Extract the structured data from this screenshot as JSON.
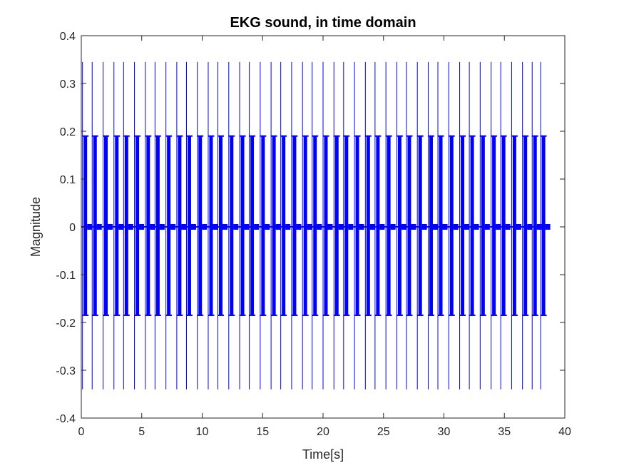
{
  "chart_data": {
    "type": "line",
    "title": "EKG sound, in time domain",
    "xlabel": "Time[s]",
    "ylabel": "Magnitude",
    "xlim": [
      0,
      40
    ],
    "ylim": [
      -0.4,
      0.4
    ],
    "x_ticks": [
      0,
      5,
      10,
      15,
      20,
      25,
      30,
      35,
      40
    ],
    "x_tick_labels": [
      "0",
      "5",
      "10",
      "15",
      "20",
      "25",
      "30",
      "35",
      "40"
    ],
    "y_ticks": [
      -0.4,
      -0.3,
      -0.2,
      -0.1,
      0,
      0.1,
      0.2,
      0.3,
      0.4
    ],
    "y_tick_labels": [
      "-0.4",
      "-0.3",
      "-0.2",
      "-0.1",
      "0",
      "0.1",
      "0.2",
      "0.3",
      "0.4"
    ],
    "grid": false,
    "series": [
      {
        "color": "#0000ff",
        "beat_times": [
          0.1,
          0.9,
          1.8,
          2.7,
          3.5,
          4.4,
          5.3,
          6.1,
          7.0,
          7.9,
          8.7,
          9.6,
          10.5,
          11.3,
          12.2,
          13.1,
          13.9,
          14.8,
          15.7,
          16.5,
          17.4,
          18.3,
          19.1,
          20.0,
          20.9,
          21.7,
          22.6,
          23.5,
          24.3,
          25.2,
          26.1,
          26.9,
          27.8,
          28.7,
          29.5,
          30.4,
          31.3,
          32.1,
          33.0,
          33.9,
          34.7,
          35.6,
          36.5,
          37.3,
          38.0
        ],
        "spike_peak": 0.345,
        "spike_trough": -0.34,
        "burst_peak": 0.19,
        "burst_trough": -0.185,
        "signal_end": 38.2
      }
    ]
  }
}
